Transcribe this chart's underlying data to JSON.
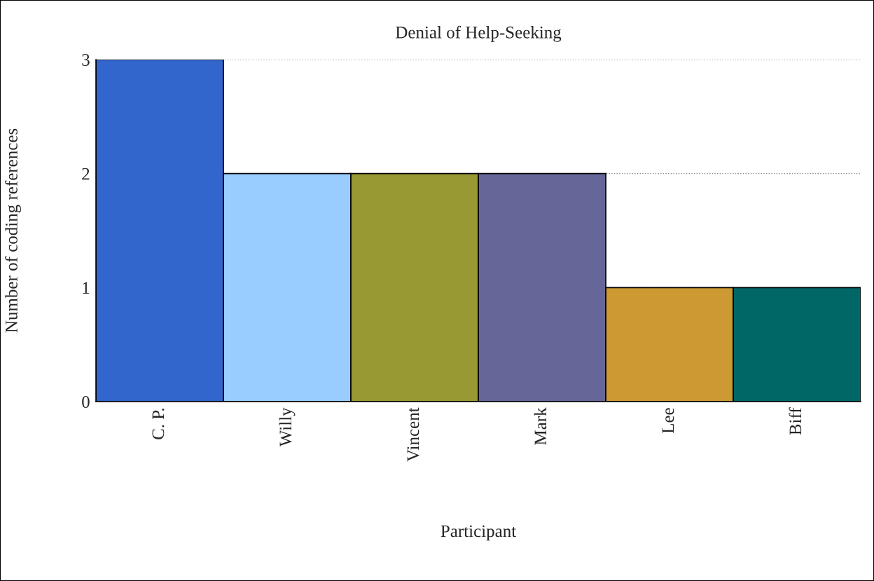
{
  "chart_data": {
    "type": "bar",
    "title": "Denial of Help-Seeking",
    "xlabel": "Participant",
    "ylabel": "Number of coding references",
    "categories": [
      "C. P.",
      "Willy",
      "Vincent",
      "Mark",
      "Lee",
      "Biff"
    ],
    "values": [
      3,
      2,
      2,
      2,
      1,
      1
    ],
    "colors": [
      "#3366cc",
      "#99ccff",
      "#999933",
      "#666699",
      "#cc9933",
      "#006666"
    ],
    "ylim": [
      0,
      3
    ],
    "yticks": [
      0,
      1,
      2,
      3
    ],
    "grid": "y",
    "legend": false
  }
}
